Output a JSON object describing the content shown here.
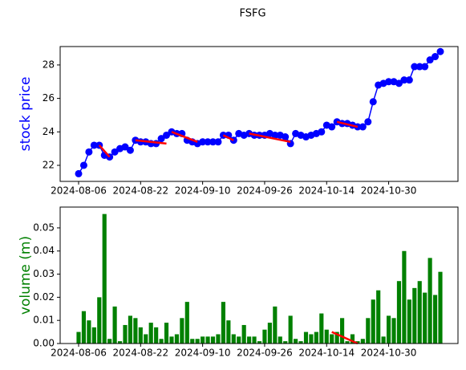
{
  "title": "FSFG",
  "chart_data": [
    {
      "type": "line",
      "ylabel": "stock price",
      "label_color": "#0000ff",
      "color": "#0000ff",
      "categories": [
        "2024-08-06",
        null,
        null,
        null,
        null,
        null,
        null,
        null,
        null,
        null,
        null,
        null,
        "2024-08-22",
        null,
        null,
        null,
        null,
        null,
        null,
        null,
        null,
        null,
        null,
        null,
        "2024-09-10",
        null,
        null,
        null,
        null,
        null,
        null,
        null,
        null,
        null,
        null,
        null,
        "2024-09-26",
        null,
        null,
        null,
        null,
        null,
        null,
        null,
        null,
        null,
        null,
        null,
        "2024-10-14",
        null,
        null,
        null,
        null,
        null,
        null,
        null,
        null,
        null,
        null,
        null,
        "2024-10-30",
        null,
        null,
        null,
        null,
        null,
        null,
        null,
        null,
        null,
        null
      ],
      "values": [
        21.5,
        22.0,
        22.8,
        23.2,
        23.2,
        22.6,
        22.5,
        22.8,
        23.0,
        23.1,
        22.9,
        23.5,
        23.4,
        23.4,
        23.3,
        23.3,
        23.6,
        23.8,
        24.0,
        23.9,
        23.9,
        23.5,
        23.4,
        23.3,
        23.4,
        23.4,
        23.4,
        23.4,
        23.8,
        23.8,
        23.5,
        23.9,
        23.8,
        23.9,
        23.8,
        23.8,
        23.8,
        23.9,
        23.8,
        23.8,
        23.7,
        23.3,
        23.9,
        23.8,
        23.7,
        23.8,
        23.9,
        24.0,
        24.4,
        24.3,
        24.6,
        24.5,
        24.5,
        24.4,
        24.3,
        24.3,
        24.6,
        25.8,
        26.8,
        26.9,
        27.0,
        27.0,
        26.9,
        27.1,
        27.1,
        27.9,
        27.9,
        27.9,
        28.3,
        28.5,
        28.8
      ],
      "trend_color": "#ff0000",
      "trends": [
        {
          "x": [
            4,
            6
          ],
          "y": [
            23.2,
            22.5
          ]
        },
        {
          "x": [
            11,
            17
          ],
          "y": [
            23.5,
            23.3
          ]
        },
        {
          "x": [
            18,
            23
          ],
          "y": [
            24.0,
            23.4
          ]
        },
        {
          "x": [
            28,
            30
          ],
          "y": [
            23.8,
            23.5
          ]
        },
        {
          "x": [
            33,
            41
          ],
          "y": [
            23.9,
            23.4
          ]
        },
        {
          "x": [
            50,
            54
          ],
          "y": [
            24.6,
            24.3
          ]
        }
      ],
      "ylim": [
        21.04,
        29.1
      ],
      "yticks": [
        22,
        24,
        26,
        28
      ]
    },
    {
      "type": "bar",
      "ylabel": "volume (m)",
      "label_color": "#008000",
      "color": "#008000",
      "categories": [
        "2024-08-06",
        null,
        null,
        null,
        null,
        null,
        null,
        null,
        null,
        null,
        null,
        null,
        "2024-08-22",
        null,
        null,
        null,
        null,
        null,
        null,
        null,
        null,
        null,
        null,
        null,
        "2024-09-10",
        null,
        null,
        null,
        null,
        null,
        null,
        null,
        null,
        null,
        null,
        null,
        "2024-09-26",
        null,
        null,
        null,
        null,
        null,
        null,
        null,
        null,
        null,
        null,
        null,
        "2024-10-14",
        null,
        null,
        null,
        null,
        null,
        null,
        null,
        null,
        null,
        null,
        null,
        "2024-10-30",
        null,
        null,
        null,
        null,
        null,
        null,
        null,
        null,
        null,
        null
      ],
      "values": [
        0.005,
        0.014,
        0.01,
        0.007,
        0.02,
        0.056,
        0.002,
        0.016,
        0.001,
        0.008,
        0.012,
        0.011,
        0.007,
        0.004,
        0.009,
        0.007,
        0.002,
        0.009,
        0.003,
        0.004,
        0.011,
        0.018,
        0.002,
        0.002,
        0.003,
        0.003,
        0.003,
        0.004,
        0.018,
        0.01,
        0.004,
        0.003,
        0.008,
        0.003,
        0.003,
        0.001,
        0.006,
        0.009,
        0.016,
        0.003,
        0.001,
        0.012,
        0.002,
        0.001,
        0.005,
        0.004,
        0.005,
        0.013,
        0.006,
        0.004,
        0.005,
        0.011,
        0.001,
        0.004,
        0.001,
        0.002,
        0.011,
        0.019,
        0.023,
        0.003,
        0.012,
        0.011,
        0.027,
        0.04,
        0.019,
        0.024,
        0.027,
        0.022,
        0.037,
        0.021,
        0.031
      ],
      "trend_color": "#ff0000",
      "trends": [
        {
          "x": [
            49,
            54
          ],
          "y": [
            0.005,
            0
          ]
        }
      ],
      "ylim": [
        0,
        0.059
      ],
      "yticks": [
        {
          "value": 0,
          "label": "0.00"
        },
        0.01,
        0.02,
        0.03,
        0.04,
        0.05
      ]
    }
  ]
}
